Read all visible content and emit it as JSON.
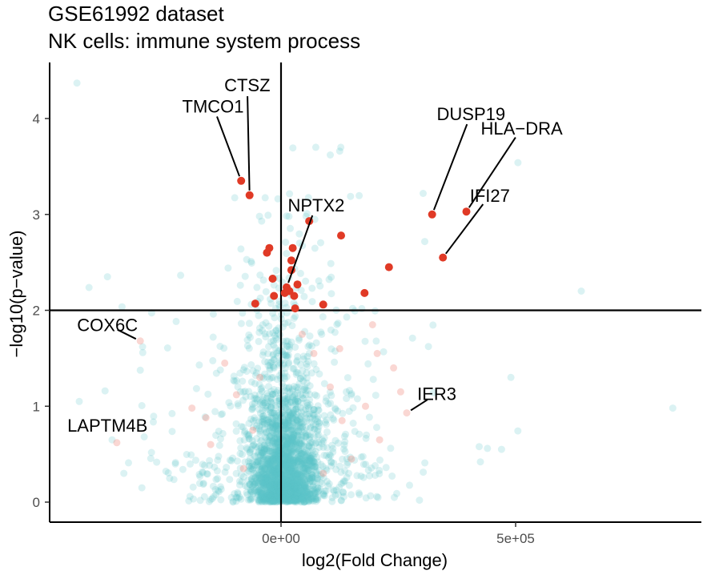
{
  "chart_data": {
    "type": "scatter",
    "title": [
      "GSE61992 dataset",
      "NK cells: immune system process"
    ],
    "xlabel": "log2(Fold Change)",
    "ylabel": "−log10(p−value)",
    "xlim": [
      -500000,
      900000
    ],
    "ylim": [
      -0.2,
      4.55
    ],
    "x_ticks": [
      {
        "value": 0,
        "label": "0e+00"
      },
      {
        "value": 500000,
        "label": "5e+05"
      }
    ],
    "y_ticks": [
      {
        "value": 0,
        "label": "0"
      },
      {
        "value": 1,
        "label": "1"
      },
      {
        "value": 2,
        "label": "2"
      },
      {
        "value": 3,
        "label": "3"
      },
      {
        "value": 4,
        "label": "4"
      }
    ],
    "reference_lines": {
      "vertical_x": 0,
      "horizontal_y": 2
    },
    "grid": false,
    "legend": "none",
    "colors": {
      "background_points": "#5bc4c9",
      "pathway_points": "#f08c80",
      "significant_points": "#e03a26",
      "lines": "#000000"
    },
    "highlighted_points": [
      {
        "x": -85000,
        "y": 3.35
      },
      {
        "x": -67000,
        "y": 3.2
      },
      {
        "x": 322000,
        "y": 3.0
      },
      {
        "x": 395000,
        "y": 3.03
      },
      {
        "x": 345000,
        "y": 2.55
      },
      {
        "x": 60000,
        "y": 2.93
      },
      {
        "x": 128000,
        "y": 2.78
      },
      {
        "x": 230000,
        "y": 2.45
      },
      {
        "x": -25000,
        "y": 2.65
      },
      {
        "x": -30000,
        "y": 2.6
      },
      {
        "x": 25000,
        "y": 2.65
      },
      {
        "x": 22000,
        "y": 2.52
      },
      {
        "x": 22000,
        "y": 2.42
      },
      {
        "x": -18000,
        "y": 2.33
      },
      {
        "x": 12000,
        "y": 2.24
      },
      {
        "x": 18000,
        "y": 2.2
      },
      {
        "x": 8000,
        "y": 2.18
      },
      {
        "x": 35000,
        "y": 2.27
      },
      {
        "x": 28000,
        "y": 2.15
      },
      {
        "x": -15000,
        "y": 2.15
      },
      {
        "x": -55000,
        "y": 2.07
      },
      {
        "x": 30000,
        "y": 2.02
      },
      {
        "x": 90000,
        "y": 2.06
      },
      {
        "x": 178000,
        "y": 2.18
      }
    ],
    "pathway_points": [
      {
        "x": -300000,
        "y": 1.68
      },
      {
        "x": -350000,
        "y": 0.62
      },
      {
        "x": 268000,
        "y": 0.93
      },
      {
        "x": -190000,
        "y": 0.98
      },
      {
        "x": -160000,
        "y": 0.88
      },
      {
        "x": -150000,
        "y": 0.6
      },
      {
        "x": -120000,
        "y": 1.45
      },
      {
        "x": -95000,
        "y": 1.12
      },
      {
        "x": -60000,
        "y": 0.75
      },
      {
        "x": 70000,
        "y": 1.55
      },
      {
        "x": 105000,
        "y": 1.2
      },
      {
        "x": 130000,
        "y": 0.85
      },
      {
        "x": 150000,
        "y": 0.45
      },
      {
        "x": 180000,
        "y": 1.0
      },
      {
        "x": 205000,
        "y": 1.55
      },
      {
        "x": 125000,
        "y": 1.6
      },
      {
        "x": 210000,
        "y": 0.65
      },
      {
        "x": 255000,
        "y": 1.15
      },
      {
        "x": 195000,
        "y": 1.85
      },
      {
        "x": 45000,
        "y": 1.75
      },
      {
        "x": -45000,
        "y": 1.3
      },
      {
        "x": -80000,
        "y": 0.35
      },
      {
        "x": 90000,
        "y": 0.3
      },
      {
        "x": 240000,
        "y": 1.4
      }
    ],
    "annotations": [
      {
        "text": "TMCO1",
        "point": {
          "x": -85000,
          "y": 3.35
        },
        "label_at": {
          "x": -145000,
          "y": 4.13
        }
      },
      {
        "text": "CTSZ",
        "point": {
          "x": -67000,
          "y": 3.2
        },
        "label_at": {
          "x": -72000,
          "y": 4.35
        }
      },
      {
        "text": "DUSP19",
        "point": {
          "x": 322000,
          "y": 3.0
        },
        "label_at": {
          "x": 405000,
          "y": 4.05
        }
      },
      {
        "text": "HLA−DRA",
        "point": {
          "x": 395000,
          "y": 3.03
        },
        "label_at": {
          "x": 513000,
          "y": 3.9
        }
      },
      {
        "text": "IFI27",
        "point": {
          "x": 345000,
          "y": 2.55
        },
        "label_at": {
          "x": 445000,
          "y": 3.2
        }
      },
      {
        "text": "NPTX2",
        "point": {
          "x": 12000,
          "y": 2.24
        },
        "label_at": {
          "x": 75000,
          "y": 3.1
        }
      },
      {
        "text": "COX6C",
        "point": {
          "x": -300000,
          "y": 1.68
        },
        "label_at": {
          "x": -370000,
          "y": 1.85
        }
      },
      {
        "text": "LAPTM4B",
        "point": {
          "x": -350000,
          "y": 0.62
        },
        "label_at": {
          "x": -370000,
          "y": 0.8
        }
      },
      {
        "text": "IER3",
        "point": {
          "x": 268000,
          "y": 0.93
        },
        "label_at": {
          "x": 332000,
          "y": 1.13
        }
      }
    ]
  }
}
